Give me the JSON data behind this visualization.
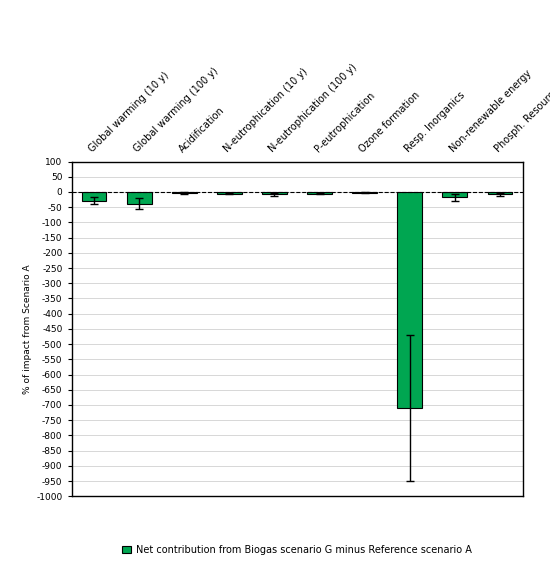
{
  "categories": [
    "Global warming (10 y)",
    "Global warming (100 y)",
    "Acidification",
    "N-eutrophication (10 y)",
    "N-eutrophication (100 y)",
    "P-eutrophication",
    "Ozone formation",
    "Resp. Inorganics",
    "Non-renewable energy",
    "Phosph. Resources"
  ],
  "values": [
    -28,
    -38,
    -3,
    -5,
    -8,
    -5,
    -2,
    -710,
    -18,
    -8
  ],
  "error_low": [
    10,
    18,
    3,
    3,
    5,
    3,
    2,
    240,
    10,
    5
  ],
  "error_high": [
    10,
    18,
    3,
    3,
    5,
    3,
    2,
    240,
    10,
    5
  ],
  "bar_color": "#00a651",
  "bar_edge_color": "#000000",
  "error_color": "#000000",
  "ylim": [
    -1000,
    100
  ],
  "yticks": [
    100,
    50,
    0,
    -50,
    -100,
    -150,
    -200,
    -250,
    -300,
    -350,
    -400,
    -450,
    -500,
    -550,
    -600,
    -650,
    -700,
    -750,
    -800,
    -850,
    -900,
    -950,
    -1000
  ],
  "ylabel": "% of impact from Scenario A",
  "legend_label": "Net contribution from Biogas scenario G minus Reference scenario A",
  "legend_color": "#00a651",
  "grid_color": "#c8c8c8",
  "background_color": "#ffffff",
  "bar_width": 0.55,
  "title": ""
}
